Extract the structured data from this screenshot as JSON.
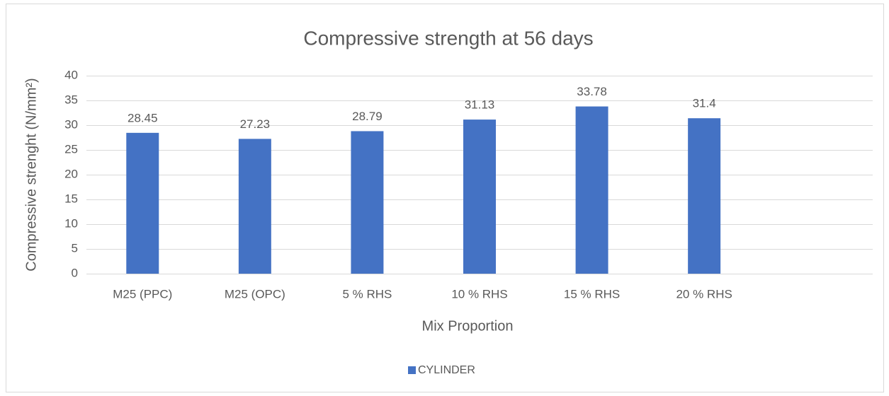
{
  "chart_data": {
    "type": "bar",
    "title": "Compressive strength at 56 days",
    "x_label": "Mix Proportion",
    "y_label": "Compressive strenght (N/mm²)",
    "categories": [
      "M25 (PPC)",
      "M25 (OPC)",
      "5 % RHS",
      "10 % RHS",
      "15 % RHS",
      "20 % RHS",
      null
    ],
    "series": [
      {
        "name": "CYLINDER",
        "color": "#4472c4",
        "values": [
          28.45,
          27.23,
          28.79,
          31.13,
          33.78,
          31.4,
          null
        ]
      }
    ],
    "ylim": [
      0,
      40
    ],
    "yticks": [
      0,
      5,
      10,
      15,
      20,
      25,
      30,
      35,
      40
    ],
    "grid": true,
    "legend": "bottom"
  }
}
